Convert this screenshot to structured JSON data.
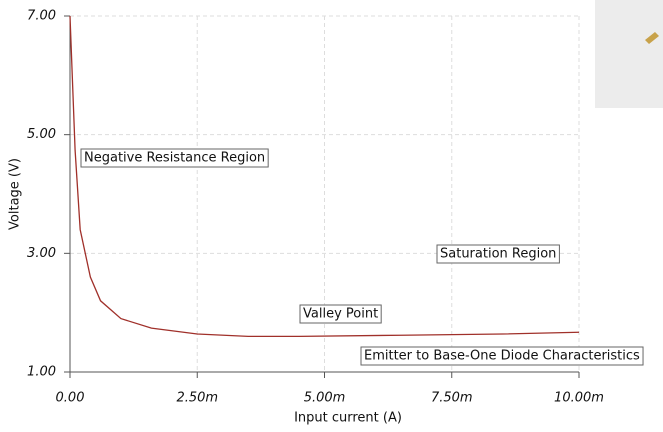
{
  "chart_data": {
    "type": "line",
    "xlabel": "Input current (A)",
    "ylabel": "Voltage (V)",
    "x": [
      0,
      0.0001,
      0.0002,
      0.0004,
      0.0006,
      0.001,
      0.0016,
      0.0025,
      0.0035,
      0.0045,
      0.0065,
      0.0085,
      0.01
    ],
    "values": [
      7.0,
      4.74,
      3.4,
      2.6,
      2.2,
      1.9,
      1.74,
      1.64,
      1.6,
      1.6,
      1.62,
      1.64,
      1.67
    ],
    "color": "#a0302a",
    "xlim": [
      0,
      0.01
    ],
    "xticks": [
      {
        "value": 0,
        "label": "0.00"
      },
      {
        "value": 0.0025,
        "label": "2.50m"
      },
      {
        "value": 0.005,
        "label": "5.00m"
      },
      {
        "value": 0.0075,
        "label": "7.50m"
      },
      {
        "value": 0.01,
        "label": "10.00m"
      }
    ],
    "ylim": [
      1,
      7
    ],
    "yticks": [
      {
        "value": 1,
        "label": "1.00"
      },
      {
        "value": 3,
        "label": "3.00"
      },
      {
        "value": 5,
        "label": "5.00"
      },
      {
        "value": 7,
        "label": "7.00"
      }
    ],
    "grid": true,
    "annotations": [
      "Negative Resistance Region",
      "Saturation Region",
      "Valley Point",
      "Emitter to Base-One Diode Characteristics"
    ]
  }
}
